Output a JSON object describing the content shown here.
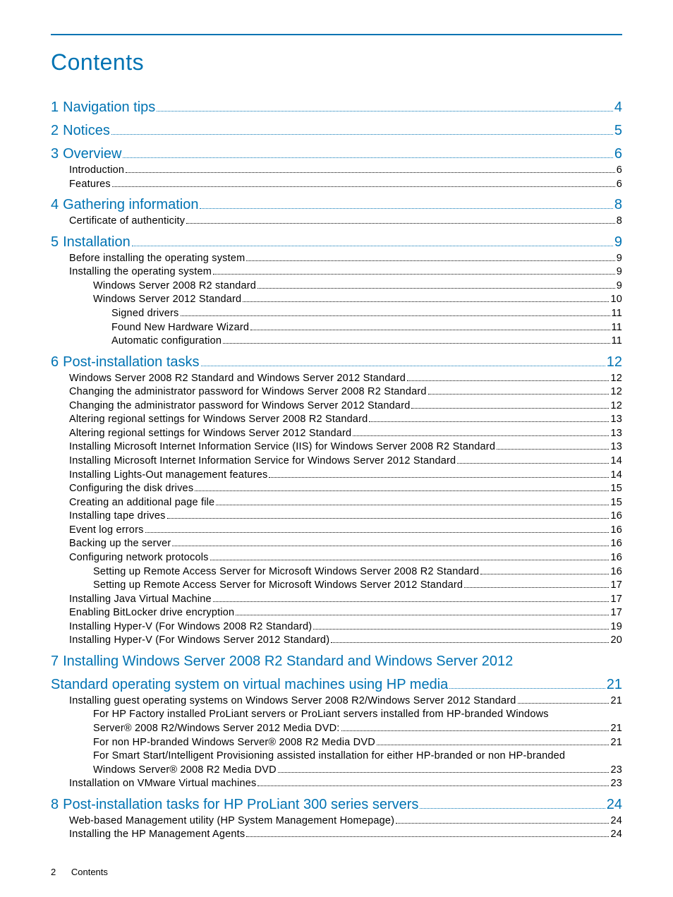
{
  "title": "Contents",
  "colors": {
    "accent": "#0073b3",
    "text": "#000000",
    "background": "#ffffff"
  },
  "font": {
    "title_size": 32,
    "chapter_size": 20,
    "body_size": 14.5
  },
  "footer": {
    "page_number": "2",
    "label": "Contents"
  },
  "toc": [
    {
      "level": 0,
      "num": "1",
      "label": "Navigation tips",
      "page": "4"
    },
    {
      "level": 0,
      "num": "2",
      "label": "Notices",
      "page": "5"
    },
    {
      "level": 0,
      "num": "3",
      "label": "Overview",
      "page": "6"
    },
    {
      "level": 1,
      "label": "Introduction",
      "page": "6"
    },
    {
      "level": 1,
      "label": "Features",
      "page": "6"
    },
    {
      "level": 0,
      "num": "4",
      "label": "Gathering information",
      "page": "8"
    },
    {
      "level": 1,
      "label": "Certificate of authenticity",
      "page": "8"
    },
    {
      "level": 0,
      "num": "5",
      "label": "Installation",
      "page": "9"
    },
    {
      "level": 1,
      "label": "Before installing the operating system",
      "page": "9"
    },
    {
      "level": 1,
      "label": "Installing the operating system",
      "page": "9"
    },
    {
      "level": 2,
      "label": "Windows Server 2008 R2 standard",
      "page": "9"
    },
    {
      "level": 2,
      "label": "Windows Server 2012 Standard",
      "page": "10"
    },
    {
      "level": 3,
      "label": "Signed drivers",
      "page": "11"
    },
    {
      "level": 3,
      "label": "Found New Hardware Wizard",
      "page": "11"
    },
    {
      "level": 3,
      "label": "Automatic configuration",
      "page": "11"
    },
    {
      "level": 0,
      "num": "6",
      "label": "Post-installation tasks",
      "page": "12"
    },
    {
      "level": 1,
      "label": "Windows Server 2008 R2 Standard and Windows Server 2012 Standard",
      "page": "12"
    },
    {
      "level": 1,
      "label": "Changing the administrator password for Windows Server 2008 R2 Standard",
      "page": "12"
    },
    {
      "level": 1,
      "label": "Changing the administrator password for Windows Server 2012 Standard",
      "page": "12"
    },
    {
      "level": 1,
      "label": "Altering regional settings for Windows Server 2008 R2 Standard",
      "page": "13"
    },
    {
      "level": 1,
      "label": "Altering regional settings for Windows Server 2012 Standard",
      "page": "13"
    },
    {
      "level": 1,
      "label": "Installing Microsoft Internet Information Service (IIS) for Windows Server 2008 R2 Standard",
      "page": "13"
    },
    {
      "level": 1,
      "label": "Installing Microsoft Internet Information Service for Windows Server 2012 Standard",
      "page": "14"
    },
    {
      "level": 1,
      "label": "Installing Lights-Out management features",
      "page": "14"
    },
    {
      "level": 1,
      "label": "Configuring the disk drives",
      "page": "15"
    },
    {
      "level": 1,
      "label": "Creating an additional page file",
      "page": "15"
    },
    {
      "level": 1,
      "label": "Installing tape drives",
      "page": "16"
    },
    {
      "level": 1,
      "label": "Event log errors",
      "page": "16"
    },
    {
      "level": 1,
      "label": "Backing up the server",
      "page": "16"
    },
    {
      "level": 1,
      "label": "Configuring network protocols",
      "page": "16"
    },
    {
      "level": 2,
      "label": "Setting up Remote Access Server for Microsoft Windows Server 2008 R2 Standard",
      "page": "16"
    },
    {
      "level": 2,
      "label": "Setting up Remote Access Server for Microsoft Windows Server 2012 Standard",
      "page": "17"
    },
    {
      "level": 1,
      "label": "Installing Java Virtual Machine",
      "page": "17"
    },
    {
      "level": 1,
      "label": "Enabling BitLocker drive encryption",
      "page": "17"
    },
    {
      "level": 1,
      "label": "Installing Hyper-V (For Windows 2008 R2 Standard)",
      "page": "19"
    },
    {
      "level": 1,
      "label": "Installing Hyper-V (For Windows Server 2012 Standard)",
      "page": "20"
    },
    {
      "level": 0,
      "num": "7",
      "label_line1": "Installing Windows Server 2008 R2 Standard and Windows Server 2012",
      "label_line2": "Standard operating system on virtual machines using HP media",
      "page": "21"
    },
    {
      "level": 1,
      "label": "Installing guest operating systems on Windows Server 2008 R2/Windows Server 2012 Standard",
      "page": "21"
    },
    {
      "level": 2,
      "label_line1": "For HP Factory installed ProLiant servers or ProLiant servers installed from HP-branded Windows",
      "label_line2": "Server® 2008 R2/Windows Server 2012 Media DVD:",
      "page": "21"
    },
    {
      "level": 2,
      "label": "For non HP-branded Windows Server® 2008 R2 Media DVD",
      "page": "21"
    },
    {
      "level": 2,
      "label_line1": "For Smart Start/Intelligent Provisioning assisted installation for either HP-branded or non HP-branded",
      "label_line2": "Windows Server® 2008 R2 Media DVD",
      "page": "23"
    },
    {
      "level": 1,
      "label": "Installation on VMware Virtual machines",
      "page": "23"
    },
    {
      "level": 0,
      "num": "8",
      "label": "Post-installation tasks for HP ProLiant 300 series servers",
      "page": "24"
    },
    {
      "level": 1,
      "label": "Web-based Management utility (HP System Management Homepage)",
      "page": "24"
    },
    {
      "level": 1,
      "label": "Installing the HP Management Agents",
      "page": "24"
    }
  ]
}
